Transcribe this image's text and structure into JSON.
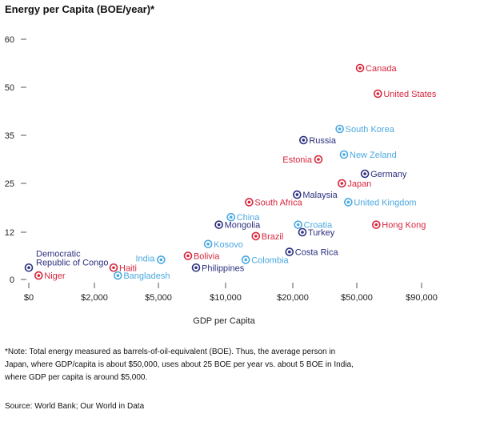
{
  "chart_data": {
    "type": "scatter",
    "title": "Energy per Capita (BOE/year)*",
    "xlabel": "GDP per Capita",
    "ylabel": "",
    "x_ticks": [
      "$0",
      "$2,000",
      "$5,000",
      "$10,000",
      "$20,000",
      "$50,000",
      "$90,000"
    ],
    "y_ticks": [
      "60",
      "50",
      "35",
      "25",
      "12",
      "0"
    ],
    "colors": {
      "red": "#d7263d",
      "darkblue": "#2b2f7e",
      "lightblue": "#4aa8e0"
    },
    "points": [
      {
        "label": "Canada",
        "x": 52000,
        "y": 54,
        "color": "red"
      },
      {
        "label": "United States",
        "x": 63000,
        "y": 48,
        "color": "red"
      },
      {
        "label": "South Korea",
        "x": 42000,
        "y": 37,
        "color": "lightblue"
      },
      {
        "label": "Russia",
        "x": 25000,
        "y": 34,
        "color": "darkblue"
      },
      {
        "label": "New Zeland",
        "x": 44000,
        "y": 31,
        "color": "lightblue"
      },
      {
        "label": "Estonia",
        "x": 32000,
        "y": 30,
        "color": "red"
      },
      {
        "label": "Germany",
        "x": 55000,
        "y": 27,
        "color": "darkblue"
      },
      {
        "label": "Japan",
        "x": 43000,
        "y": 25,
        "color": "red"
      },
      {
        "label": "Malaysia",
        "x": 22000,
        "y": 22,
        "color": "darkblue"
      },
      {
        "label": "South Africa",
        "x": 13500,
        "y": 20,
        "color": "red"
      },
      {
        "label": "United Kingdom",
        "x": 46000,
        "y": 20,
        "color": "lightblue"
      },
      {
        "label": "China",
        "x": 10800,
        "y": 16,
        "color": "lightblue"
      },
      {
        "label": "Croatia",
        "x": 22500,
        "y": 14,
        "color": "lightblue"
      },
      {
        "label": "Mongolia",
        "x": 9500,
        "y": 14,
        "color": "darkblue"
      },
      {
        "label": "Hong Kong",
        "x": 62000,
        "y": 14,
        "color": "red"
      },
      {
        "label": "Turkey",
        "x": 24500,
        "y": 12,
        "color": "darkblue"
      },
      {
        "label": "Brazil",
        "x": 14500,
        "y": 11,
        "color": "red"
      },
      {
        "label": "Kosovo",
        "x": 8700,
        "y": 9,
        "color": "lightblue"
      },
      {
        "label": "Costa Rica",
        "x": 19500,
        "y": 7,
        "color": "darkblue"
      },
      {
        "label": "Bolivia",
        "x": 7200,
        "y": 6,
        "color": "red"
      },
      {
        "label": "India",
        "x": 5200,
        "y": 5,
        "color": "lightblue"
      },
      {
        "label": "Colombia",
        "x": 13000,
        "y": 5,
        "color": "lightblue"
      },
      {
        "label": "Philippines",
        "x": 7800,
        "y": 3,
        "color": "darkblue"
      },
      {
        "label": "Haiti",
        "x": 2900,
        "y": 3,
        "color": "red"
      },
      {
        "label": "Democratic Republic of Congo",
        "x": 0,
        "y": 3,
        "color": "darkblue"
      },
      {
        "label": "Bangladesh",
        "x": 3100,
        "y": 1,
        "color": "lightblue"
      },
      {
        "label": "Niger",
        "x": 300,
        "y": 1,
        "color": "red"
      }
    ]
  },
  "note": "*Note: Total energy measured as barrels-of-oil-equivalent (BOE). Thus, the average person in Japan, where GDP/capita is about $50,000, uses about 25 BOE per year vs. about 5 BOE in India, where GDP per capita is around $5,000.",
  "source": "Source: World Bank; Our World in Data"
}
